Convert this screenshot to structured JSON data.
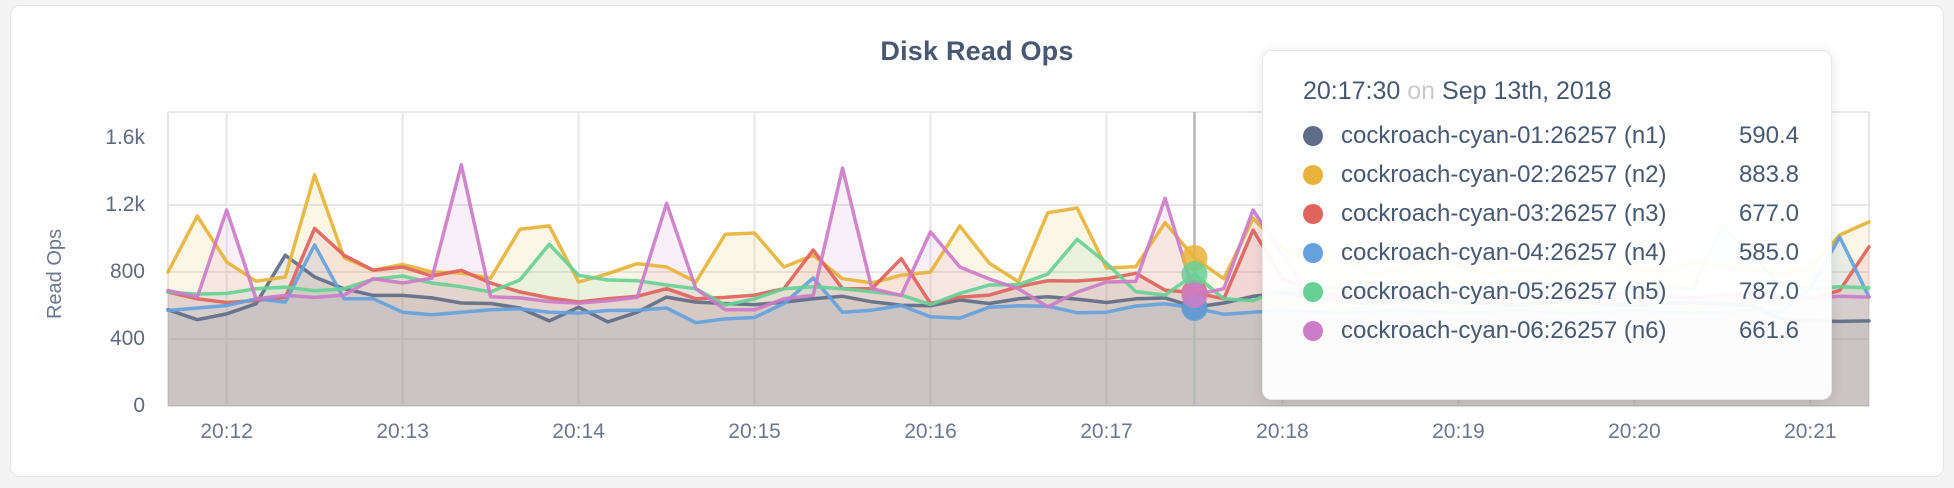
{
  "page": {
    "background": "#f4f4f4",
    "card_background": "#ffffff"
  },
  "chart_data": {
    "type": "line",
    "title": "Disk Read Ops",
    "xlabel": "",
    "ylabel": "Read Ops",
    "grid": true,
    "legend_position": "tooltip",
    "x_start": "20:11:40",
    "x_interval_seconds": 10,
    "x_tick_labels": [
      "20:12",
      "20:13",
      "20:14",
      "20:15",
      "20:16",
      "20:17",
      "20:18",
      "20:19",
      "20:20",
      "20:21"
    ],
    "x_tick_indices": [
      2,
      8,
      14,
      20,
      26,
      32,
      38,
      44,
      50,
      56
    ],
    "y_tick_labels": [
      "0",
      "400",
      "800",
      "1.2k",
      "1.6k"
    ],
    "y_ticks": [
      0,
      400,
      800,
      1200,
      1600
    ],
    "y_gridlines": [
      400,
      800,
      1200
    ],
    "ylim": [
      0,
      1755
    ],
    "hover_index": 35,
    "hover_time": "20:17:30",
    "colors": {
      "grid": "#e7e7e7",
      "hover_line": "#b8b8b8",
      "axis_text": "#6b7690"
    },
    "series": [
      {
        "name": "cockroach-cyan-01:26257 (n1)",
        "color": "#5f6c87",
        "values": [
          575,
          515,
          550,
          610,
          900,
          770,
          700,
          660,
          660,
          645,
          615,
          612,
          585,
          508,
          590,
          502,
          560,
          650,
          620,
          612,
          605,
          620,
          640,
          655,
          622,
          602,
          598,
          633,
          612,
          640,
          652,
          638,
          618,
          640,
          645,
          590.4,
          615,
          655,
          675,
          648,
          628,
          608,
          622,
          638,
          618,
          612,
          602,
          618,
          628,
          608,
          602,
          612,
          618,
          608,
          602,
          520,
          508,
          505,
          508
        ]
      },
      {
        "name": "cockroach-cyan-02:26257 (n2)",
        "color": "#e7b33a",
        "values": [
          800,
          1134,
          860,
          745,
          770,
          1380,
          885,
          810,
          845,
          800,
          794,
          763,
          1055,
          1075,
          740,
          790,
          850,
          830,
          740,
          1025,
          1033,
          830,
          900,
          760,
          735,
          780,
          800,
          1075,
          853,
          742,
          1154,
          1182,
          824,
          832,
          1095,
          883.8,
          760,
          1120,
          940,
          860,
          905,
          780,
          820,
          865,
          835,
          790,
          815,
          795,
          838,
          872,
          822,
          795,
          855,
          835,
          815,
          788,
          820,
          1021,
          1099
        ]
      },
      {
        "name": "cockroach-cyan-03:26257 (n3)",
        "color": "#e0635c",
        "values": [
          680,
          640,
          618,
          630,
          648,
          1060,
          900,
          810,
          830,
          776,
          810,
          734,
          681,
          645,
          621,
          640,
          655,
          700,
          640,
          648,
          662,
          700,
          931,
          700,
          700,
          880,
          612,
          650,
          662,
          712,
          748,
          746,
          760,
          792,
          692,
          677,
          640,
          1050,
          760,
          690,
          660,
          680,
          700,
          670,
          650,
          668,
          688,
          662,
          645,
          662,
          680,
          660,
          645,
          660,
          672,
          655,
          640,
          690,
          950
        ]
      },
      {
        "name": "cockroach-cyan-04:26257 (n4)",
        "color": "#64a1dd",
        "values": [
          570,
          585,
          600,
          640,
          620,
          961,
          640,
          640,
          560,
          545,
          560,
          575,
          580,
          560,
          555,
          570,
          572,
          585,
          497,
          520,
          528,
          612,
          764,
          560,
          572,
          600,
          533,
          525,
          590,
          598,
          596,
          557,
          560,
          597,
          610,
          585,
          548,
          560,
          572,
          560,
          552,
          562,
          575,
          560,
          552,
          560,
          572,
          558,
          550,
          560,
          570,
          558,
          552,
          560,
          572,
          560,
          700,
          1009,
          651
        ]
      },
      {
        "name": "cockroach-cyan-05:26257 (n5)",
        "color": "#67d095",
        "values": [
          680,
          668,
          672,
          700,
          710,
          688,
          700,
          757,
          776,
          734,
          712,
          681,
          752,
          965,
          780,
          752,
          748,
          722,
          700,
          603,
          640,
          700,
          712,
          700,
          682,
          662,
          605,
          672,
          722,
          724,
          788,
          995,
          853,
          683,
          662,
          787,
          640,
          628,
          700,
          712,
          700,
          688,
          700,
          712,
          700,
          688,
          700,
          710,
          700,
          690,
          700,
          710,
          700,
          1080,
          900,
          712,
          700,
          712,
          705
        ]
      },
      {
        "name": "cockroach-cyan-06:26257 (n6)",
        "color": "#cc7cc8",
        "values": [
          690,
          650,
          1170,
          640,
          660,
          648,
          662,
          760,
          734,
          763,
          1440,
          652,
          645,
          623,
          614,
          628,
          648,
          1210,
          700,
          575,
          574,
          640,
          660,
          1420,
          700,
          660,
          1039,
          830,
          758,
          700,
          592,
          680,
          740,
          744,
          1240,
          661.6,
          700,
          1170,
          900,
          660,
          640,
          660,
          680,
          660,
          640,
          660,
          680,
          660,
          640,
          660,
          680,
          660,
          640,
          660,
          680,
          660,
          640,
          655,
          650
        ]
      }
    ]
  },
  "tooltip": {
    "time": "20:17:30",
    "connector": "on",
    "date": "Sep 13th, 2018",
    "rows": [
      {
        "label": "cockroach-cyan-01:26257 (n1)",
        "value": "590.4"
      },
      {
        "label": "cockroach-cyan-02:26257 (n2)",
        "value": "883.8"
      },
      {
        "label": "cockroach-cyan-03:26257 (n3)",
        "value": "677.0"
      },
      {
        "label": "cockroach-cyan-04:26257 (n4)",
        "value": "585.0"
      },
      {
        "label": "cockroach-cyan-05:26257 (n5)",
        "value": "787.0"
      },
      {
        "label": "cockroach-cyan-06:26257 (n6)",
        "value": "661.6"
      }
    ]
  }
}
